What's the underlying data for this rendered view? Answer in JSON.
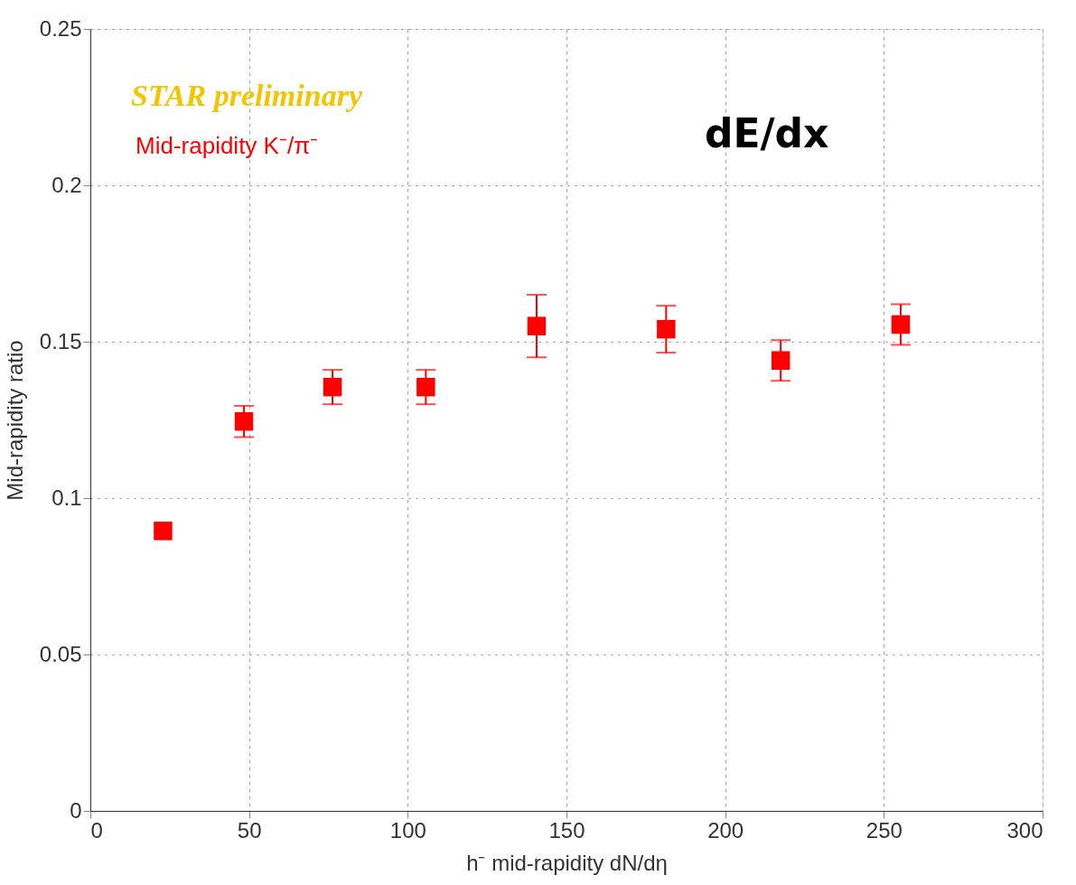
{
  "chart_data": {
    "type": "scatter",
    "xlabel": "h⁻ mid-rapidity dN/dη",
    "ylabel": "Mid-rapidity ratio",
    "annotations": [
      "STAR preliminary",
      "dE/dx"
    ],
    "x": [
      22.9,
      48.4,
      76.3,
      105.7,
      140.6,
      181.4,
      217.5,
      255.3
    ],
    "series": [
      {
        "name": "Mid-rapidity K⁻/π⁻",
        "color": "#ff0000",
        "values": [
          0.0895,
          0.1245,
          0.1355,
          0.1355,
          0.155,
          0.154,
          0.144,
          0.1555
        ],
        "errors": [
          null,
          0.005,
          0.0055,
          0.0055,
          0.01,
          0.0075,
          0.0065,
          0.0065
        ]
      }
    ],
    "xlim": [
      0,
      300
    ],
    "xticks": [
      0,
      50,
      100,
      150,
      200,
      250,
      300
    ],
    "ylim": [
      0,
      0.25
    ],
    "yticks": [
      0,
      0.05,
      0.1,
      0.15,
      0.2,
      0.25
    ],
    "grid": true,
    "legend": "top left",
    "marker": "square"
  }
}
